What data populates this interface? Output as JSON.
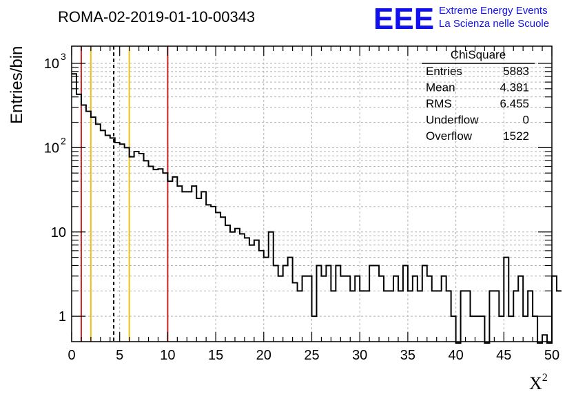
{
  "chart_data": {
    "type": "bar",
    "title": "ROMA-02-2019-01-10-00343",
    "xlabel": "X",
    "xlabel_sup": "2",
    "ylabel": "Entries/bin",
    "xlim": [
      0,
      50
    ],
    "ylim": [
      0.5,
      1600
    ],
    "yscale": "log",
    "grid": true,
    "x_ticks": [
      "0",
      "5",
      "10",
      "15",
      "20",
      "25",
      "30",
      "35",
      "40",
      "45",
      "50"
    ],
    "y_ticks": [
      {
        "base": "1",
        "exp": ""
      },
      {
        "base": "10",
        "exp": ""
      },
      {
        "base": "10",
        "exp": "2"
      },
      {
        "base": "10",
        "exp": "3"
      }
    ],
    "bin_width": 0.5,
    "values": [
      750,
      430,
      320,
      270,
      230,
      190,
      160,
      140,
      130,
      115,
      110,
      100,
      78,
      90,
      85,
      70,
      60,
      55,
      56,
      50,
      40,
      45,
      35,
      30,
      30,
      35,
      25,
      30,
      21,
      20,
      17,
      15,
      12,
      10,
      11,
      9.5,
      8.5,
      7,
      8,
      6,
      5,
      10,
      4,
      3,
      4,
      5,
      2.5,
      2,
      3,
      3,
      1,
      4,
      3,
      4,
      2,
      4,
      3,
      3,
      2,
      3,
      2,
      2,
      4,
      4,
      3,
      2,
      2,
      3,
      2,
      4,
      2,
      3,
      2,
      4,
      3,
      2,
      2,
      3,
      2,
      1,
      0,
      2,
      2,
      1,
      1,
      1,
      0,
      2,
      2,
      1,
      5,
      1,
      2,
      3,
      1,
      2,
      1,
      0,
      0.6,
      0,
      3,
      2
    ],
    "lines": [
      {
        "x": 1,
        "color": "#d42020",
        "style": "solid"
      },
      {
        "x": 2,
        "color": "#f0c010",
        "style": "solid"
      },
      {
        "x": 4.381,
        "color": "#000000",
        "style": "dashed"
      },
      {
        "x": 6,
        "color": "#f0c010",
        "style": "solid"
      },
      {
        "x": 10,
        "color": "#d42020",
        "style": "solid"
      }
    ]
  },
  "stats": {
    "title": "ChiSquare",
    "rows": [
      {
        "label": "Entries",
        "value": "5883"
      },
      {
        "label": "Mean",
        "value": "4.381"
      },
      {
        "label": "RMS",
        "value": "6.455"
      },
      {
        "label": "Underflow",
        "value": "0"
      },
      {
        "label": "Overflow",
        "value": "1522"
      }
    ]
  },
  "logo": {
    "letters": "EEE",
    "line1": "Extreme Energy Events",
    "line2": "La Scienza nelle Scuole",
    "color": "#1010ee"
  }
}
